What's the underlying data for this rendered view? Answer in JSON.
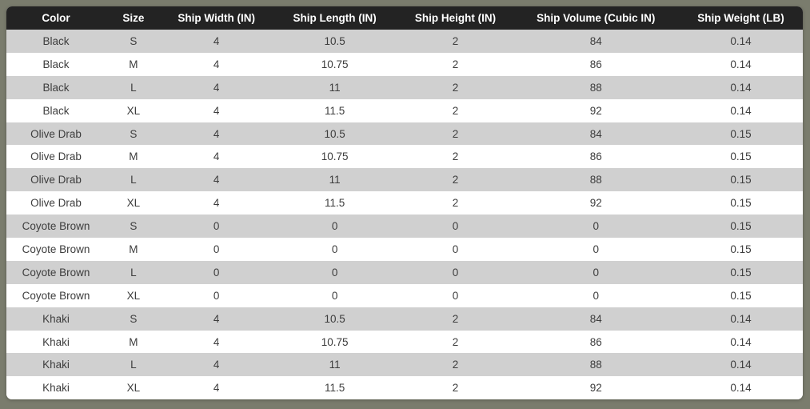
{
  "page": {
    "background_color": "#7a7c6d"
  },
  "table_style": {
    "header_bg": "#232323",
    "header_text_color": "#ffffff",
    "stripe_color": "#d0d0d0",
    "row_color": "#ffffff",
    "cell_text_color": "#3d3d3d"
  },
  "chart_data": {
    "type": "table",
    "title": "",
    "columns": [
      "Color",
      "Size",
      "Ship Width (IN)",
      "Ship Length (IN)",
      "Ship Height (IN)",
      "Ship Volume (Cubic IN)",
      "Ship Weight (LB)"
    ],
    "rows": [
      [
        "Black",
        "S",
        "4",
        "10.5",
        "2",
        "84",
        "0.14"
      ],
      [
        "Black",
        "M",
        "4",
        "10.75",
        "2",
        "86",
        "0.14"
      ],
      [
        "Black",
        "L",
        "4",
        "11",
        "2",
        "88",
        "0.14"
      ],
      [
        "Black",
        "XL",
        "4",
        "11.5",
        "2",
        "92",
        "0.14"
      ],
      [
        "Olive Drab",
        "S",
        "4",
        "10.5",
        "2",
        "84",
        "0.15"
      ],
      [
        "Olive Drab",
        "M",
        "4",
        "10.75",
        "2",
        "86",
        "0.15"
      ],
      [
        "Olive Drab",
        "L",
        "4",
        "11",
        "2",
        "88",
        "0.15"
      ],
      [
        "Olive Drab",
        "XL",
        "4",
        "11.5",
        "2",
        "92",
        "0.15"
      ],
      [
        "Coyote Brown",
        "S",
        "0",
        "0",
        "0",
        "0",
        "0.15"
      ],
      [
        "Coyote Brown",
        "M",
        "0",
        "0",
        "0",
        "0",
        "0.15"
      ],
      [
        "Coyote Brown",
        "L",
        "0",
        "0",
        "0",
        "0",
        "0.15"
      ],
      [
        "Coyote Brown",
        "XL",
        "0",
        "0",
        "0",
        "0",
        "0.15"
      ],
      [
        "Khaki",
        "S",
        "4",
        "10.5",
        "2",
        "84",
        "0.14"
      ],
      [
        "Khaki",
        "M",
        "4",
        "10.75",
        "2",
        "86",
        "0.14"
      ],
      [
        "Khaki",
        "L",
        "4",
        "11",
        "2",
        "88",
        "0.14"
      ],
      [
        "Khaki",
        "XL",
        "4",
        "11.5",
        "2",
        "92",
        "0.14"
      ]
    ]
  }
}
